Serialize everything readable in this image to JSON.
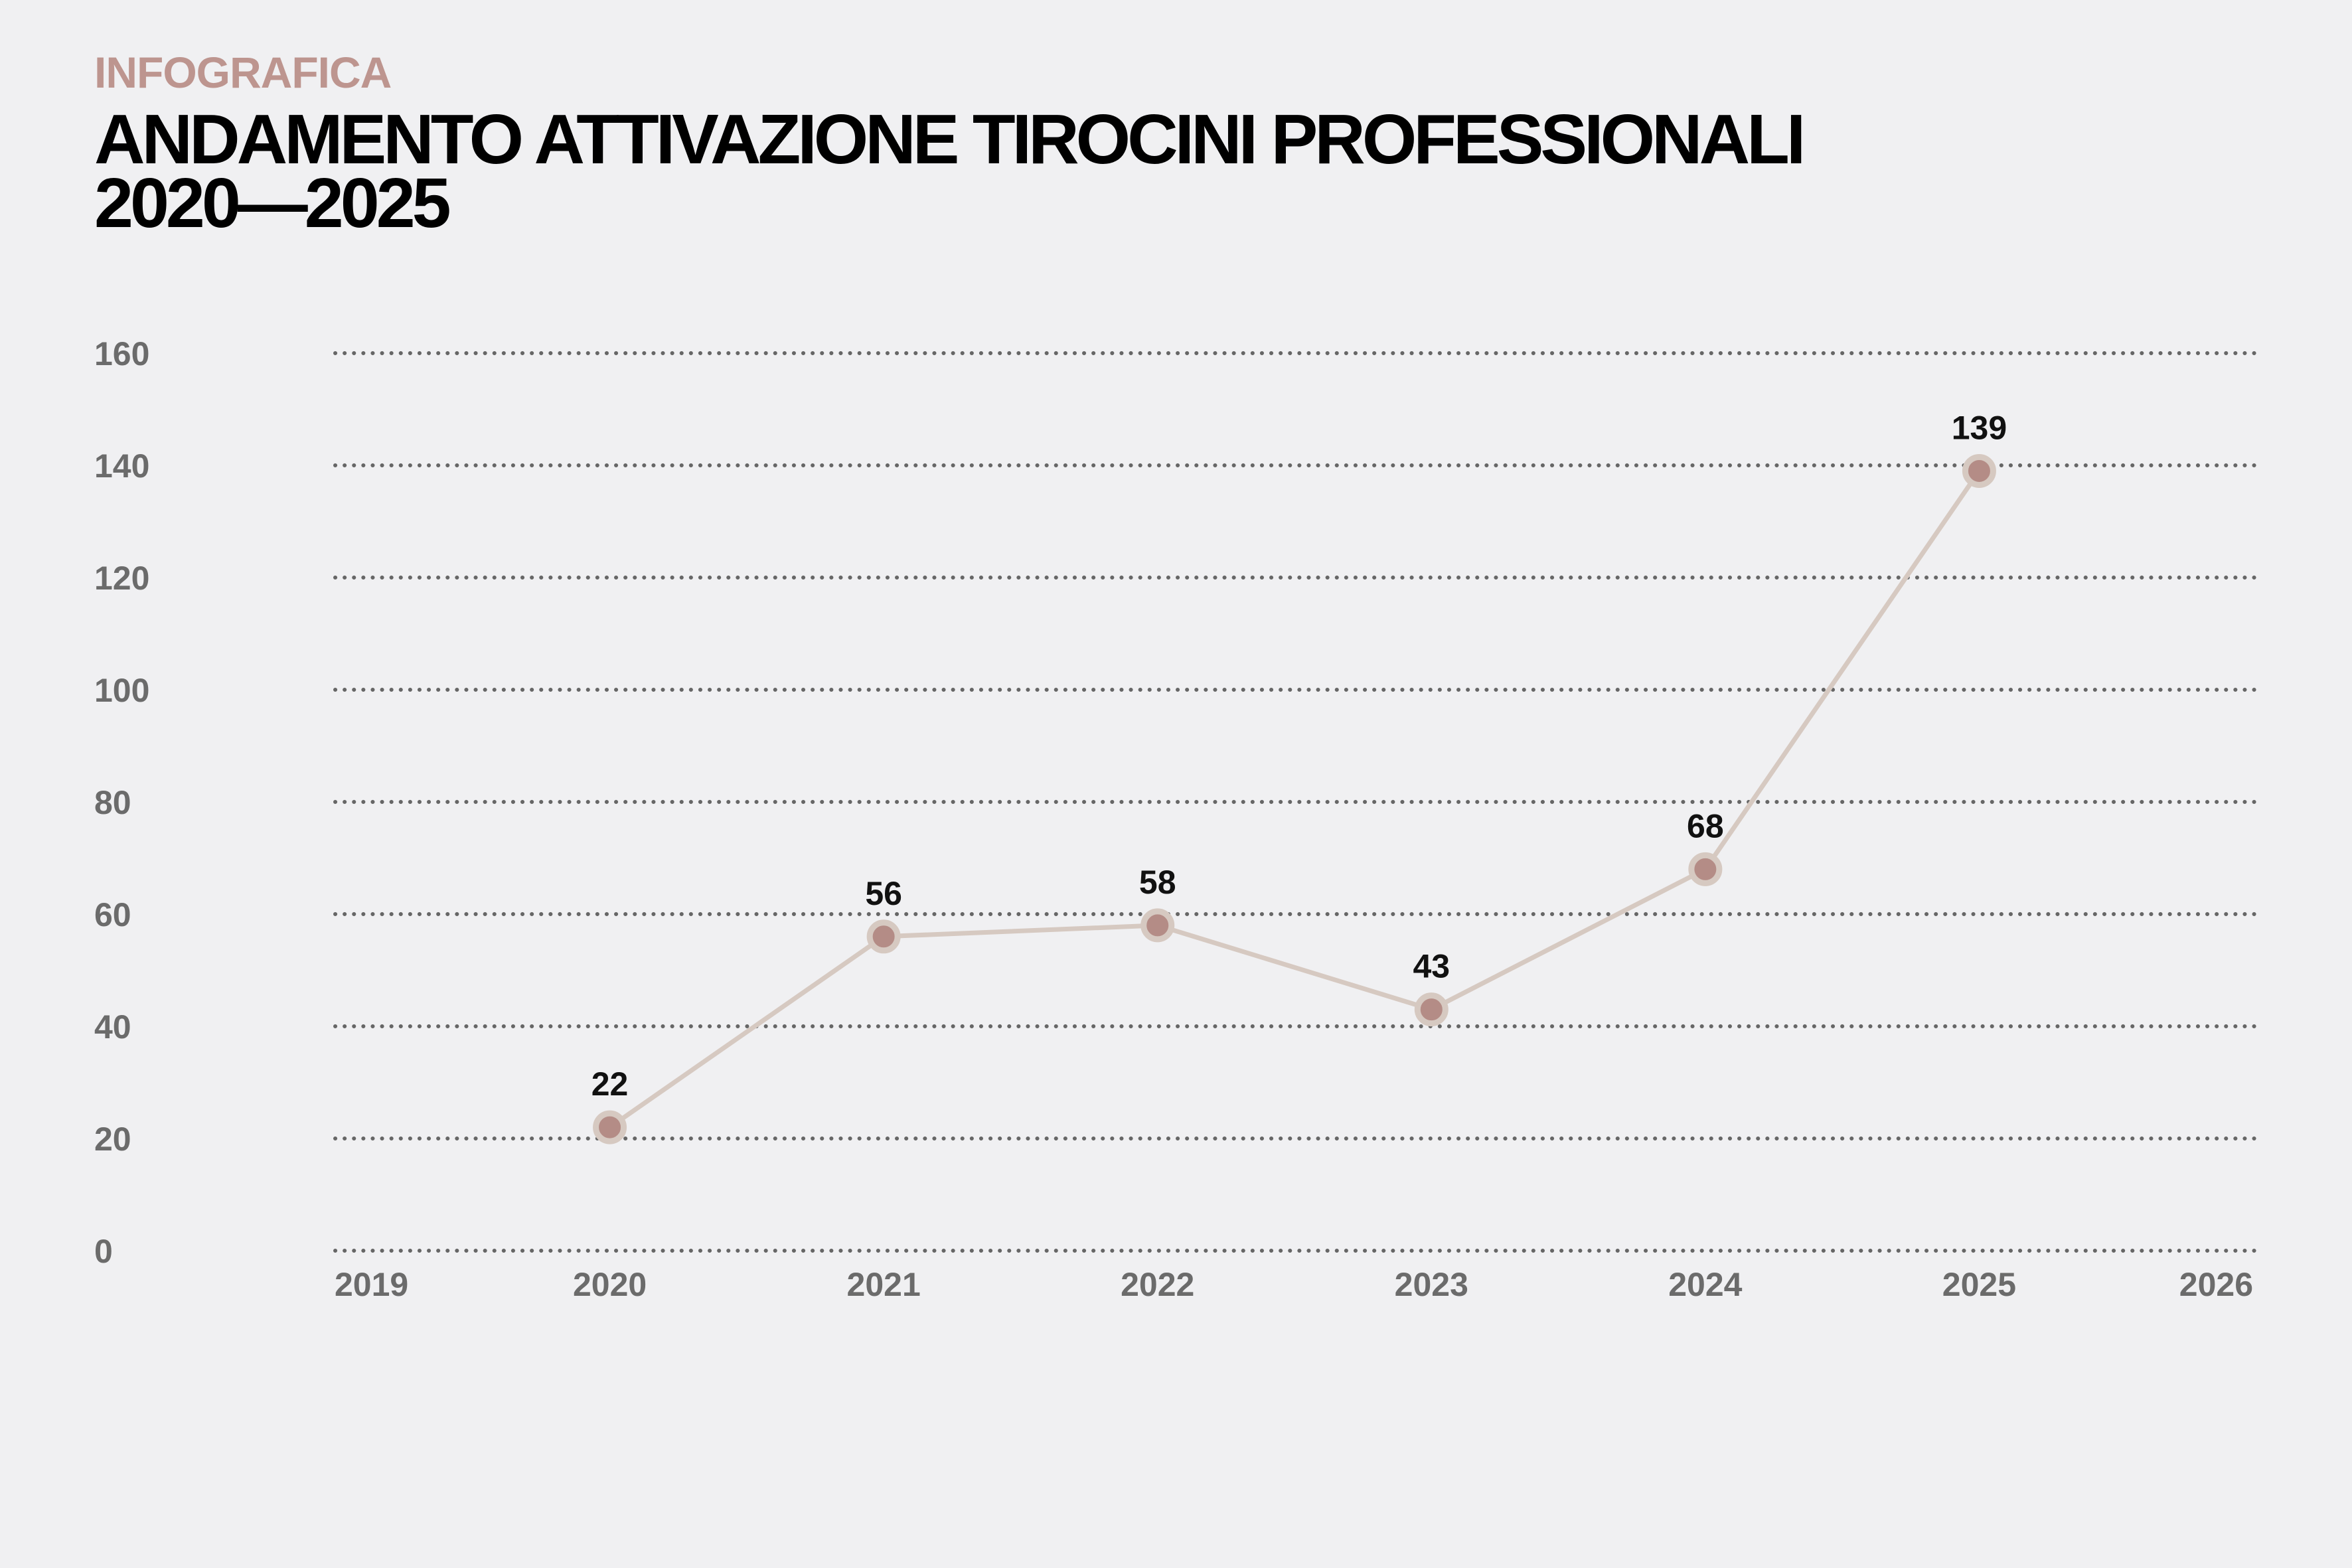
{
  "header": {
    "kicker": "INFOGRAFICA",
    "title_line1": "ANDAMENTO ATTIVAZIONE TIROCINI PROFESSIONALI",
    "title_line2": "2020—2025"
  },
  "colors": {
    "background": "#f0f0f2",
    "kicker": "#bd958f",
    "line": "#d6c9c1",
    "marker_fill": "#b48c86",
    "marker_ring": "#d6c9c1",
    "grid": "#666666"
  },
  "chart_data": {
    "type": "line",
    "title": "ANDAMENTO ATTIVAZIONE TIROCINI PROFESSIONALI 2020—2025",
    "xlabel": "",
    "ylabel": "",
    "x_ticks": [
      "2019",
      "2020",
      "2021",
      "2022",
      "2023",
      "2024",
      "2025",
      "2026"
    ],
    "xlim": [
      2019,
      2026
    ],
    "y_ticks": [
      "0",
      "20",
      "40",
      "60",
      "80",
      "100",
      "120",
      "140",
      "160"
    ],
    "ylim": [
      0,
      160
    ],
    "grid": "horizontal-dotted",
    "legend": "none",
    "series": [
      {
        "x": [
          2020,
          2021,
          2022,
          2023,
          2024,
          2025
        ],
        "values": [
          22,
          56,
          58,
          43,
          68,
          139
        ],
        "labels": [
          "22",
          "56",
          "58",
          "43",
          "68",
          "139"
        ]
      }
    ]
  }
}
